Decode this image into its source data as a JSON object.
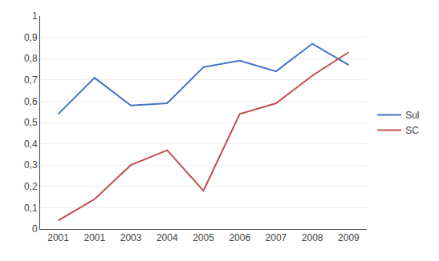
{
  "chart_data": {
    "type": "line",
    "categories": [
      "2001",
      "2001",
      "2003",
      "2004",
      "2005",
      "2006",
      "2007",
      "2008",
      "2009"
    ],
    "series": [
      {
        "name": "Sul",
        "color": "#4472C4",
        "values": [
          0.54,
          0.71,
          0.58,
          0.59,
          0.76,
          0.79,
          0.74,
          0.87,
          0.77
        ]
      },
      {
        "name": "SC",
        "color": "#C0504D",
        "values": [
          0.04,
          0.14,
          0.3,
          0.37,
          0.18,
          0.54,
          0.59,
          0.72,
          0.83
        ]
      }
    ],
    "ylim": [
      0,
      1.0
    ],
    "yticks": [
      0,
      {
        "value": 0.1,
        "label": "0,1"
      },
      {
        "value": 0.2,
        "label": "0,2"
      },
      {
        "value": 0.3,
        "label": "0,3"
      },
      {
        "value": 0.4,
        "label": "0,4"
      },
      {
        "value": 0.5,
        "label": "0,5"
      },
      {
        "value": 0.6,
        "label": "0,6"
      },
      {
        "value": 0.7,
        "label": "0,7"
      },
      {
        "value": 0.8,
        "label": "0,8"
      },
      {
        "value": 0.9,
        "label": "0,9"
      },
      1
    ],
    "grid": true,
    "legend": "right"
  }
}
